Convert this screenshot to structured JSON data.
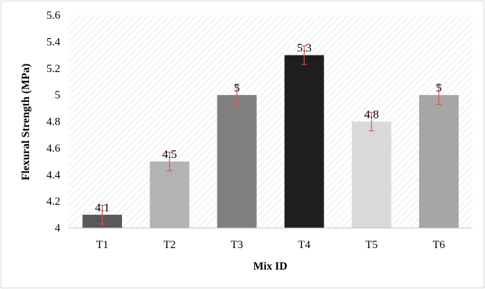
{
  "chart_data": {
    "type": "bar",
    "categories": [
      "T1",
      "T2",
      "T3",
      "T4",
      "T5",
      "T6"
    ],
    "values": [
      4.1,
      4.5,
      5.0,
      5.3,
      4.8,
      5.0
    ],
    "data_labels": [
      "4.1",
      "4.5",
      "5",
      "5.3",
      "4.8",
      "5"
    ],
    "error": [
      0.07,
      0.07,
      0.07,
      0.07,
      0.07,
      0.07
    ],
    "bar_colors": [
      "#595959",
      "#b3b3b3",
      "#808080",
      "#1e1e1e",
      "#d9d9d9",
      "#a6a6a6"
    ],
    "error_color": "#d9534f",
    "xlabel": "Mix ID",
    "ylabel": "Flexural Strength (MPa)",
    "ylim": [
      4,
      5.6
    ],
    "yticks": [
      "4",
      "4.2",
      "4.4",
      "4.6",
      "4.8",
      "5",
      "5.2",
      "5.4",
      "5.6"
    ],
    "grid": false,
    "background_pattern": "diagonal-hatch"
  }
}
